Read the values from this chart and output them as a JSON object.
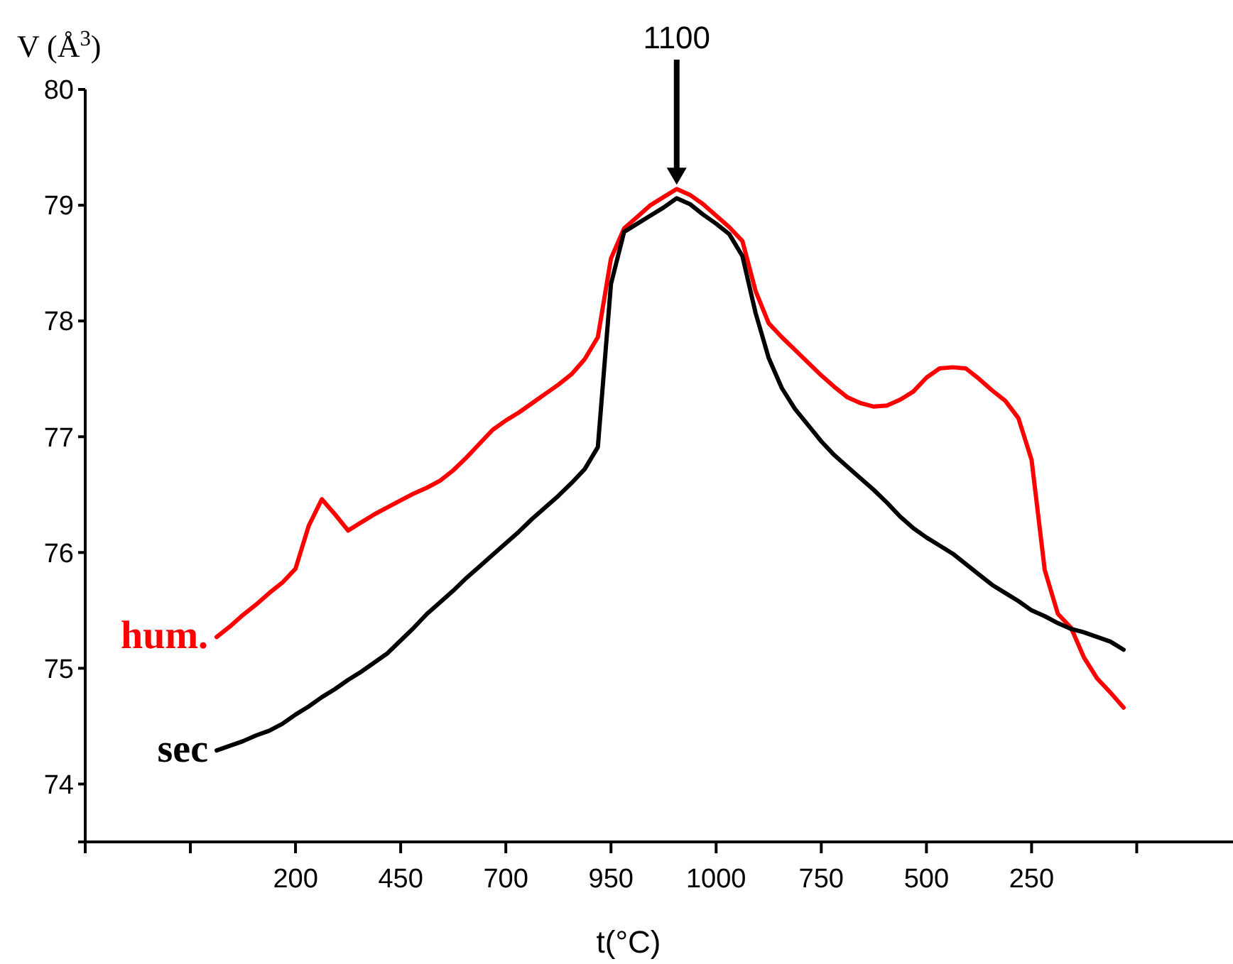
{
  "chart_data": {
    "type": "line",
    "ylabel": "V (Å$^{3}$)",
    "xlabel": "t(°C)",
    "ylim": [
      73.5,
      80
    ],
    "yticks": [
      74,
      75,
      76,
      77,
      78,
      79,
      80
    ],
    "categories": [
      null,
      null,
      null,
      null,
      null,
      null,
      null,
      null,
      null,
      null,
      null,
      null,
      null,
      null,
      null,
      null,
      "200",
      null,
      null,
      null,
      null,
      null,
      null,
      null,
      "450",
      null,
      null,
      null,
      null,
      null,
      null,
      null,
      "700",
      null,
      null,
      null,
      null,
      null,
      null,
      null,
      "950",
      null,
      null,
      null,
      null,
      null,
      null,
      null,
      "1000",
      null,
      null,
      null,
      null,
      null,
      null,
      null,
      "750",
      null,
      null,
      null,
      null,
      null,
      null,
      null,
      "500",
      null,
      null,
      null,
      null,
      null,
      null,
      null,
      "250",
      null,
      null,
      null,
      null,
      null,
      null,
      null,
      null,
      null,
      null,
      null,
      null,
      null,
      null,
      null
    ],
    "grid": false,
    "legend": false,
    "marker": "none",
    "line_style": "solid",
    "annotations": [
      "1100"
    ],
    "series": [
      {
        "name": "hum.",
        "color": "#ff0000",
        "values": [
          null,
          null,
          null,
          null,
          null,
          null,
          null,
          null,
          null,
          null,
          75.27,
          75.36,
          75.46,
          75.55,
          75.65,
          75.74,
          75.86,
          76.23,
          76.46,
          76.33,
          76.19,
          76.26,
          76.33,
          76.39,
          76.45,
          76.51,
          76.56,
          76.62,
          76.71,
          76.82,
          76.94,
          77.06,
          77.14,
          77.21,
          77.29,
          77.37,
          77.45,
          77.54,
          77.67,
          77.86,
          78.54,
          78.8,
          78.9,
          79.0,
          79.07,
          79.14,
          79.09,
          79.01,
          78.91,
          78.81,
          78.69,
          78.26,
          77.98,
          77.86,
          77.75,
          77.64,
          77.53,
          77.43,
          77.34,
          77.29,
          77.26,
          77.27,
          77.32,
          77.39,
          77.51,
          77.59,
          77.6,
          77.59,
          77.5,
          77.4,
          77.31,
          77.16,
          76.8,
          75.85,
          75.47,
          75.35,
          75.09,
          74.91,
          74.79,
          74.66,
          null,
          null,
          null,
          null,
          null,
          null,
          null,
          null
        ]
      },
      {
        "name": "sec",
        "color": "#000000",
        "values": [
          null,
          null,
          null,
          null,
          null,
          null,
          null,
          null,
          null,
          null,
          74.29,
          74.33,
          74.37,
          74.42,
          74.46,
          74.52,
          74.6,
          74.67,
          74.75,
          74.82,
          74.9,
          74.97,
          75.05,
          75.13,
          75.24,
          75.35,
          75.47,
          75.57,
          75.67,
          75.78,
          75.88,
          75.98,
          76.08,
          76.18,
          76.29,
          76.39,
          76.49,
          76.6,
          76.72,
          76.91,
          78.32,
          78.77,
          78.84,
          78.91,
          78.98,
          79.06,
          79.01,
          78.92,
          78.84,
          78.75,
          78.56,
          78.07,
          77.68,
          77.42,
          77.24,
          77.1,
          76.96,
          76.84,
          76.74,
          76.64,
          76.54,
          76.43,
          76.31,
          76.21,
          76.13,
          76.06,
          75.99,
          75.9,
          75.81,
          75.72,
          75.65,
          75.58,
          75.5,
          75.45,
          75.39,
          75.34,
          75.31,
          75.27,
          75.23,
          75.16,
          null,
          null,
          null,
          null,
          null,
          null,
          null,
          null
        ]
      }
    ]
  }
}
